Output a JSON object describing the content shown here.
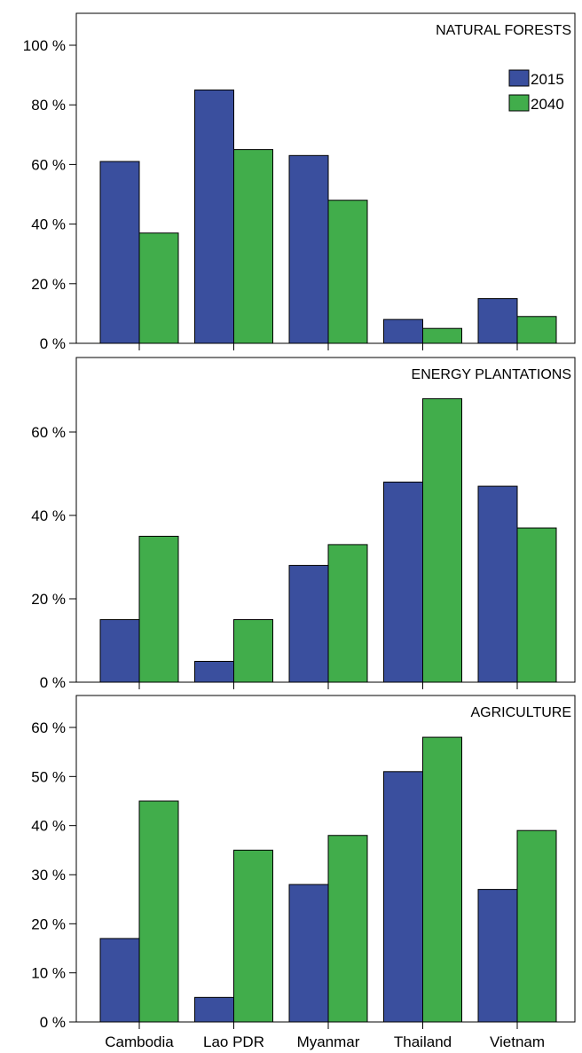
{
  "chart_data": [
    {
      "type": "bar",
      "title": "NATURAL FORESTS",
      "categories": [
        "Cambodia",
        "Lao PDR",
        "Myanmar",
        "Thailand",
        "Vietnam"
      ],
      "series": [
        {
          "name": "2015",
          "values": [
            61,
            85,
            63,
            8,
            15
          ],
          "color": "#3a4f9e"
        },
        {
          "name": "2040",
          "values": [
            37,
            65,
            48,
            5,
            9
          ],
          "color": "#41ad4b"
        }
      ],
      "ylim": [
        0,
        100
      ],
      "yticks": [
        0,
        20,
        40,
        60,
        80,
        100
      ],
      "ytick_labels": [
        "0 %",
        "20 %",
        "40 %",
        "60 %",
        "80 %",
        "100 %"
      ],
      "legend": "top-right"
    },
    {
      "type": "bar",
      "title": "ENERGY PLANTATIONS",
      "categories": [
        "Cambodia",
        "Lao PDR",
        "Myanmar",
        "Thailand",
        "Vietnam"
      ],
      "series": [
        {
          "name": "2015",
          "values": [
            15,
            5,
            28,
            48,
            47
          ],
          "color": "#3a4f9e"
        },
        {
          "name": "2040",
          "values": [
            35,
            15,
            33,
            68,
            37
          ],
          "color": "#41ad4b"
        }
      ],
      "ylim": [
        0,
        70
      ],
      "yticks": [
        0,
        20,
        40,
        60
      ],
      "ytick_labels": [
        "0 %",
        "20 %",
        "40 %",
        "60 %"
      ]
    },
    {
      "type": "bar",
      "title": "AGRICULTURE",
      "categories": [
        "Cambodia",
        "Lao PDR",
        "Myanmar",
        "Thailand",
        "Vietnam"
      ],
      "series": [
        {
          "name": "2015",
          "values": [
            17,
            5,
            28,
            51,
            27
          ],
          "color": "#3a4f9e"
        },
        {
          "name": "2040",
          "values": [
            45,
            35,
            38,
            58,
            39
          ],
          "color": "#41ad4b"
        }
      ],
      "ylim": [
        0,
        65
      ],
      "yticks": [
        0,
        10,
        20,
        30,
        40,
        50,
        60
      ],
      "ytick_labels": [
        "0 %",
        "10 %",
        "20 %",
        "30 %",
        "40 %",
        "50 %",
        "60 %"
      ]
    }
  ]
}
